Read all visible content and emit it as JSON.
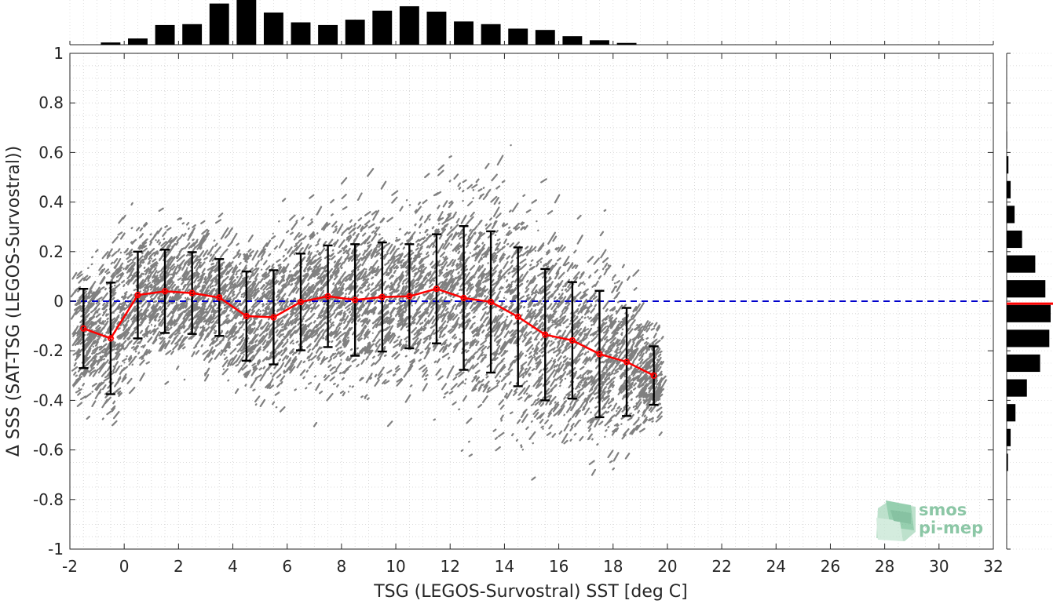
{
  "colors": {
    "scatter": "#808080",
    "mean_line": "#ff0000",
    "error_bars": "#000000",
    "zero_line": "#0000cc",
    "histogram": "#000000",
    "logo": "#8cc7a6"
  },
  "logo": {
    "line1": "smos",
    "line2": "pi-mep"
  },
  "chart_data": {
    "type": "scatter",
    "xlabel": "TSG (LEGOS-Survostral) SST [deg C]",
    "ylabel": "Δ SSS (SAT-TSG (LEGOS-Survostral))",
    "xlim": [
      -2,
      32
    ],
    "ylim": [
      -1,
      1
    ],
    "x_ticks": [
      -2,
      0,
      2,
      4,
      6,
      8,
      10,
      12,
      14,
      16,
      18,
      20,
      22,
      24,
      26,
      28,
      30,
      32
    ],
    "x_tick_labels": [
      "-2",
      "0",
      "2",
      "4",
      "6",
      "8",
      "10",
      "12",
      "14",
      "16",
      "18",
      "20",
      "22",
      "24",
      "26",
      "28",
      "30",
      "32"
    ],
    "y_ticks": [
      -1,
      -0.8,
      -0.6,
      -0.4,
      -0.2,
      0,
      0.2,
      0.4,
      0.6,
      0.8,
      1
    ],
    "y_tick_labels": [
      "-1",
      "-0.8",
      "-0.6",
      "-0.4",
      "-0.2",
      "0",
      "0.2",
      "0.4",
      "0.6",
      "0.8",
      "1"
    ],
    "grid": true,
    "reference_line_y": 0,
    "binned_mean": {
      "x": [
        -1.5,
        -0.5,
        0.5,
        1.5,
        2.5,
        3.5,
        4.5,
        5.5,
        6.5,
        7.5,
        8.5,
        9.5,
        10.5,
        11.5,
        12.5,
        13.5,
        14.5,
        15.5,
        16.5,
        17.5,
        18.5,
        19.5
      ],
      "y": [
        -0.11,
        -0.15,
        0.025,
        0.04,
        0.033,
        0.015,
        -0.06,
        -0.065,
        -0.003,
        0.02,
        0.005,
        0.017,
        0.02,
        0.05,
        0.013,
        -0.003,
        -0.063,
        -0.135,
        -0.158,
        -0.213,
        -0.245,
        -0.3
      ],
      "std": [
        0.16,
        0.225,
        0.175,
        0.168,
        0.165,
        0.155,
        0.18,
        0.19,
        0.195,
        0.205,
        0.225,
        0.22,
        0.21,
        0.22,
        0.29,
        0.285,
        0.28,
        0.265,
        0.235,
        0.255,
        0.218,
        0.118
      ]
    },
    "scatter_cloud": {
      "x_range": [
        -1.8,
        19.8
      ],
      "center_y": [
        -0.11,
        -0.15,
        0.025,
        0.04,
        0.033,
        0.015,
        -0.06,
        -0.065,
        -0.003,
        0.02,
        0.005,
        0.017,
        0.02,
        0.05,
        0.013,
        -0.003,
        -0.063,
        -0.135,
        -0.158,
        -0.213,
        -0.245,
        -0.3
      ],
      "spread": [
        0.16,
        0.225,
        0.175,
        0.168,
        0.165,
        0.155,
        0.18,
        0.19,
        0.195,
        0.205,
        0.225,
        0.22,
        0.21,
        0.22,
        0.29,
        0.285,
        0.28,
        0.265,
        0.235,
        0.255,
        0.218,
        0.118
      ]
    },
    "top_histogram": {
      "bin_centers": [
        -1.5,
        -0.5,
        0.5,
        1.5,
        2.5,
        3.5,
        4.5,
        5.5,
        6.5,
        7.5,
        8.5,
        9.5,
        10.5,
        11.5,
        12.5,
        13.5,
        14.5,
        15.5,
        16.5,
        17.5,
        18.5,
        19.5
      ],
      "relative_counts": [
        0,
        0.05,
        0.14,
        0.44,
        0.46,
        0.92,
        1.0,
        0.72,
        0.5,
        0.44,
        0.56,
        0.76,
        0.86,
        0.74,
        0.52,
        0.46,
        0.36,
        0.33,
        0.19,
        0.1,
        0.04,
        0
      ]
    },
    "right_histogram": {
      "bin_centers": [
        -0.65,
        -0.55,
        -0.45,
        -0.35,
        -0.25,
        -0.15,
        -0.05,
        0.05,
        0.15,
        0.25,
        0.35,
        0.45,
        0.55,
        0.65
      ],
      "relative_counts": [
        0.03,
        0.09,
        0.2,
        0.46,
        0.76,
        0.97,
        1.0,
        0.88,
        0.65,
        0.35,
        0.18,
        0.09,
        0.04,
        0.01
      ],
      "mean_marker_y": -0.01
    }
  }
}
